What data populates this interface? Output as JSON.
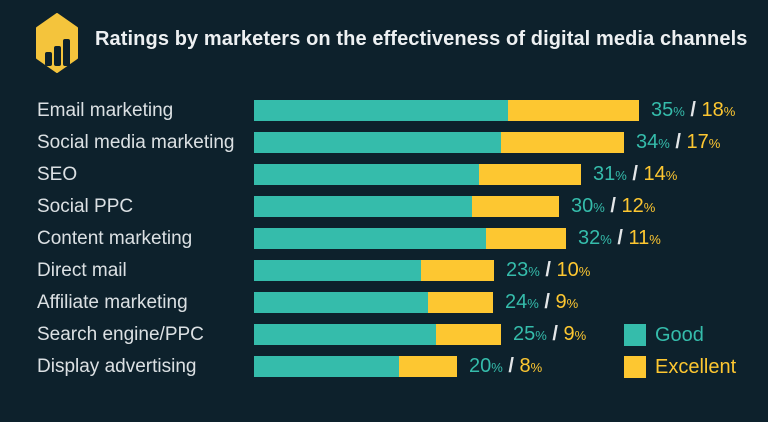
{
  "header": {
    "title": "Ratings by marketers on the effectiveness of digital media channels",
    "logo_icon": "bar-chart-hexagon-icon"
  },
  "colors": {
    "background": "#0d212c",
    "good": "#35bcab",
    "excellent": "#fdc731",
    "logo_hexagon": "#f4c43c",
    "title_text": "#edf0f2",
    "label_text": "#dbe0e3",
    "slash_text": "#e3e6e8"
  },
  "chart_data": {
    "type": "bar",
    "orientation": "horizontal",
    "stacked": true,
    "title": "Ratings by marketers on the effectiveness of digital media channels",
    "categories": [
      "Email marketing",
      "Social media marketing",
      "SEO",
      "Social PPC",
      "Content marketing",
      "Direct mail",
      "Affiliate marketing",
      "Search engine/PPC",
      "Display advertising"
    ],
    "series": [
      {
        "name": "Good",
        "color": "#35bcab",
        "values": [
          35,
          34,
          31,
          30,
          32,
          23,
          24,
          25,
          20
        ]
      },
      {
        "name": "Excellent",
        "color": "#fdc731",
        "values": [
          18,
          17,
          14,
          12,
          11,
          10,
          9,
          9,
          8
        ]
      }
    ],
    "value_labels": [
      "35% / 18%",
      "34% / 17%",
      "31% / 14%",
      "30% / 12%",
      "32% / 11%",
      "23% / 10%",
      "24% / 9%",
      "25% / 9%",
      "20% / 8%"
    ],
    "axis": {
      "x_axis_visible": false,
      "y_axis_visible": false,
      "gridlines": false,
      "xlim": [
        0,
        53
      ]
    },
    "legend": {
      "position": "bottom-right",
      "entries": [
        {
          "label": "Good",
          "color": "#35bcab"
        },
        {
          "label": "Excellent",
          "color": "#fdc731"
        }
      ]
    }
  }
}
